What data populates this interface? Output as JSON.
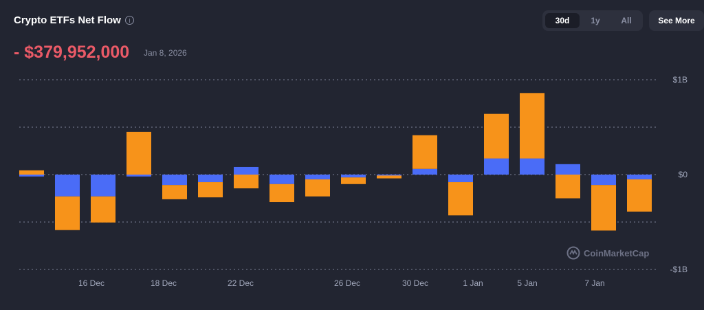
{
  "header": {
    "title": "Crypto ETFs Net Flow",
    "info_icon": "info-icon",
    "value": "- $379,952,000",
    "date": "Jan 8, 2026"
  },
  "range": {
    "options": [
      "30d",
      "1y",
      "All"
    ],
    "selected": "30d"
  },
  "see_more": "See More",
  "watermark": "CoinMarketCap",
  "chart_data": {
    "type": "bar",
    "stacked": true,
    "unit": "USD billions",
    "ylim": [
      -1,
      1
    ],
    "y_ticks": [
      "$1B",
      "$0",
      "-$1B"
    ],
    "y_tick_values": [
      1,
      0,
      -1
    ],
    "grid": true,
    "x_tick_labels": [
      "16 Dec",
      "18 Dec",
      "22 Dec",
      "26 Dec",
      "30 Dec",
      "1 Jan",
      "5 Jan",
      "7 Jan"
    ],
    "colors": [
      "#4a6cf7",
      "#f7931a"
    ],
    "series": [
      {
        "values": [
          -0.02,
          -0.23,
          -0.23,
          -0.02,
          -0.11,
          -0.08,
          0.08,
          -0.1,
          -0.05,
          -0.03,
          -0.01,
          0.06,
          -0.08,
          0.17,
          0.17,
          0.11,
          -0.11,
          -0.05
        ]
      },
      {
        "values": [
          0.045,
          -0.355,
          -0.275,
          0.45,
          -0.15,
          -0.16,
          -0.145,
          -0.19,
          -0.18,
          -0.07,
          -0.03,
          0.355,
          -0.35,
          0.47,
          0.69,
          -0.25,
          -0.48,
          -0.34
        ]
      }
    ]
  }
}
